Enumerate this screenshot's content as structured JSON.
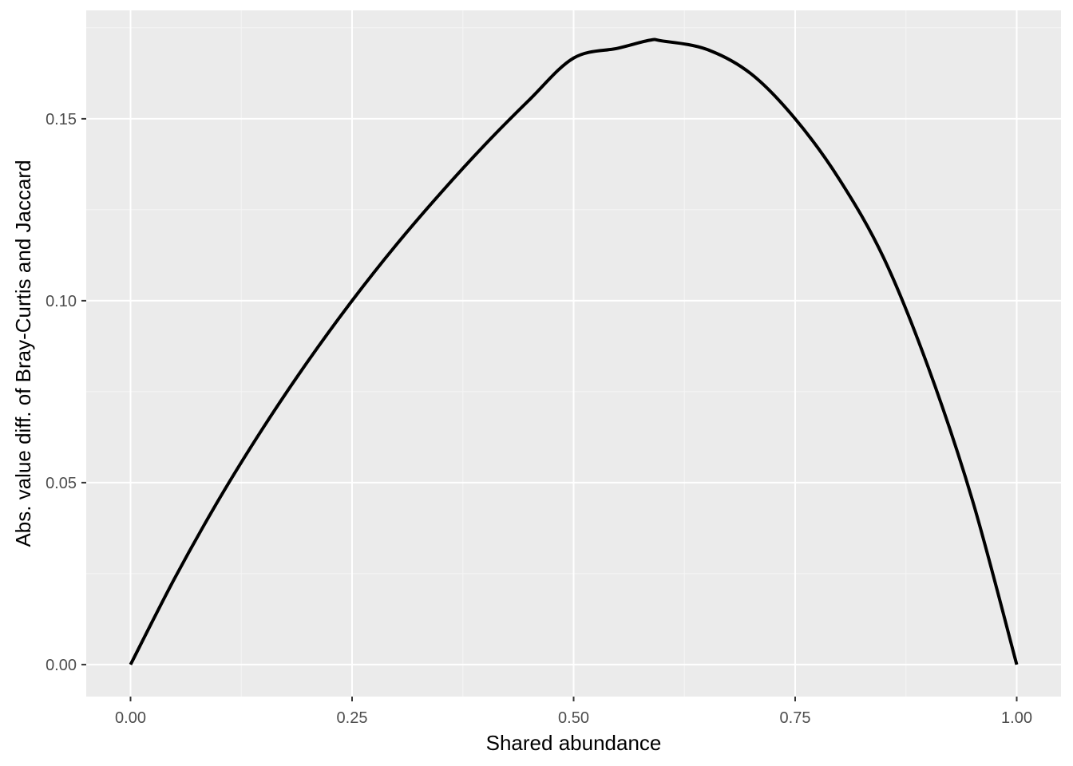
{
  "chart_data": {
    "type": "line",
    "title": "",
    "xlabel": "Shared abundance",
    "ylabel": "Abs. value diff. of Bray-Curtis and Jaccard",
    "xlim": [
      -0.05,
      1.05
    ],
    "ylim": [
      -0.0088,
      0.1798
    ],
    "x_ticks": [
      0.0,
      0.25,
      0.5,
      0.75,
      1.0
    ],
    "x_tick_labels": [
      "0.00",
      "0.25",
      "0.50",
      "0.75",
      "1.00"
    ],
    "y_ticks": [
      0.0,
      0.05,
      0.1,
      0.15
    ],
    "y_tick_labels": [
      "0.00",
      "0.05",
      "0.10",
      "0.15"
    ],
    "grid": true,
    "legend": "none",
    "colors": {
      "panel_background": "#ebebeb",
      "grid_major": "#ffffff",
      "grid_minor": "#f5f5f5",
      "line": "#000000",
      "tick_text": "#4d4d4d",
      "tick_mark": "#333333"
    },
    "series": [
      {
        "x": [
          0.0,
          0.05,
          0.1,
          0.15,
          0.2,
          0.25,
          0.3,
          0.35,
          0.4,
          0.45,
          0.5,
          0.55,
          0.586,
          0.6,
          0.65,
          0.7,
          0.75,
          0.8,
          0.85,
          0.9,
          0.95,
          1.0
        ],
        "values": [
          0.0,
          0.0238,
          0.0455,
          0.0652,
          0.0833,
          0.1,
          0.1154,
          0.1296,
          0.1429,
          0.1552,
          0.1667,
          0.1694,
          0.1716,
          0.1714,
          0.1691,
          0.1624,
          0.15,
          0.1333,
          0.1117,
          0.0818,
          0.0452,
          0.0
        ]
      }
    ]
  }
}
